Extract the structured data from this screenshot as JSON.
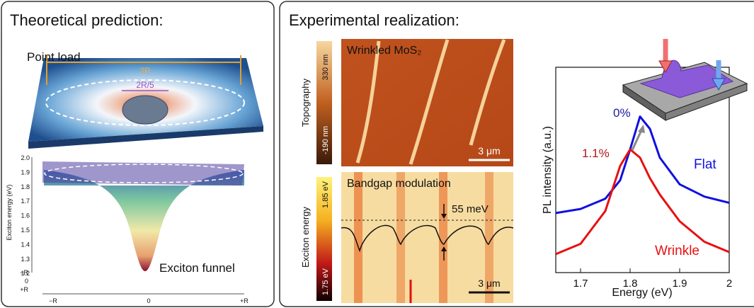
{
  "left_panel": {
    "title": "Theoretical prediction:",
    "point_load": {
      "label": "Point load",
      "outer_diameter": "2R",
      "inner_diameter": "2R/5"
    },
    "funnel": {
      "axis_label": "Exciton energy (eV)",
      "yticks": [
        "2.0",
        "1.9",
        "1.8",
        "1.7",
        "1.6",
        "1.5",
        "1.4",
        "1.3",
        "1.2"
      ],
      "depth_ticks": [
        "−R",
        "0",
        "+R"
      ],
      "x_ticks": [
        "−R",
        "0",
        "+R"
      ],
      "label": "Exciton funnel"
    }
  },
  "right_panel": {
    "title": "Experimental realization:",
    "topography": {
      "label": "Wrinkled MoS₂",
      "colorbar_label": "Topography",
      "colorbar_max": "330 nm",
      "colorbar_min": "-190 nm",
      "scale_bar": "3 μm"
    },
    "bandgap": {
      "label": "Bandgap modulation",
      "colorbar_label": "Exciton energy",
      "colorbar_max": "1.85 eV",
      "colorbar_min": "1.75 eV",
      "modulation": "55 meV",
      "scale_bar": "3 μm"
    }
  },
  "chart_data": {
    "type": "line",
    "x_label": "Energy (eV)",
    "y_label": "PL intensity (a.u.)",
    "x": [
      1.65,
      1.7,
      1.75,
      1.78,
      1.8,
      1.82,
      1.84,
      1.86,
      1.9,
      1.95,
      2.0
    ],
    "xlim": [
      1.65,
      2.0
    ],
    "xticks": [
      1.7,
      1.8,
      1.9,
      2
    ],
    "ylim": [
      0,
      1
    ],
    "series": [
      {
        "name": "Flat",
        "color": "#1010e0",
        "values": [
          0.29,
          0.31,
          0.36,
          0.45,
          0.6,
          0.76,
          0.7,
          0.56,
          0.43,
          0.37,
          0.34
        ]
      },
      {
        "name": "Wrinkle",
        "color": "#e81010",
        "values": [
          0.09,
          0.14,
          0.3,
          0.52,
          0.6,
          0.56,
          0.46,
          0.38,
          0.25,
          0.15,
          0.1
        ]
      }
    ],
    "annotations": [
      {
        "text": "0%",
        "color": "#1a1aa0"
      },
      {
        "text": "1.1%",
        "color": "#b01818"
      }
    ]
  }
}
